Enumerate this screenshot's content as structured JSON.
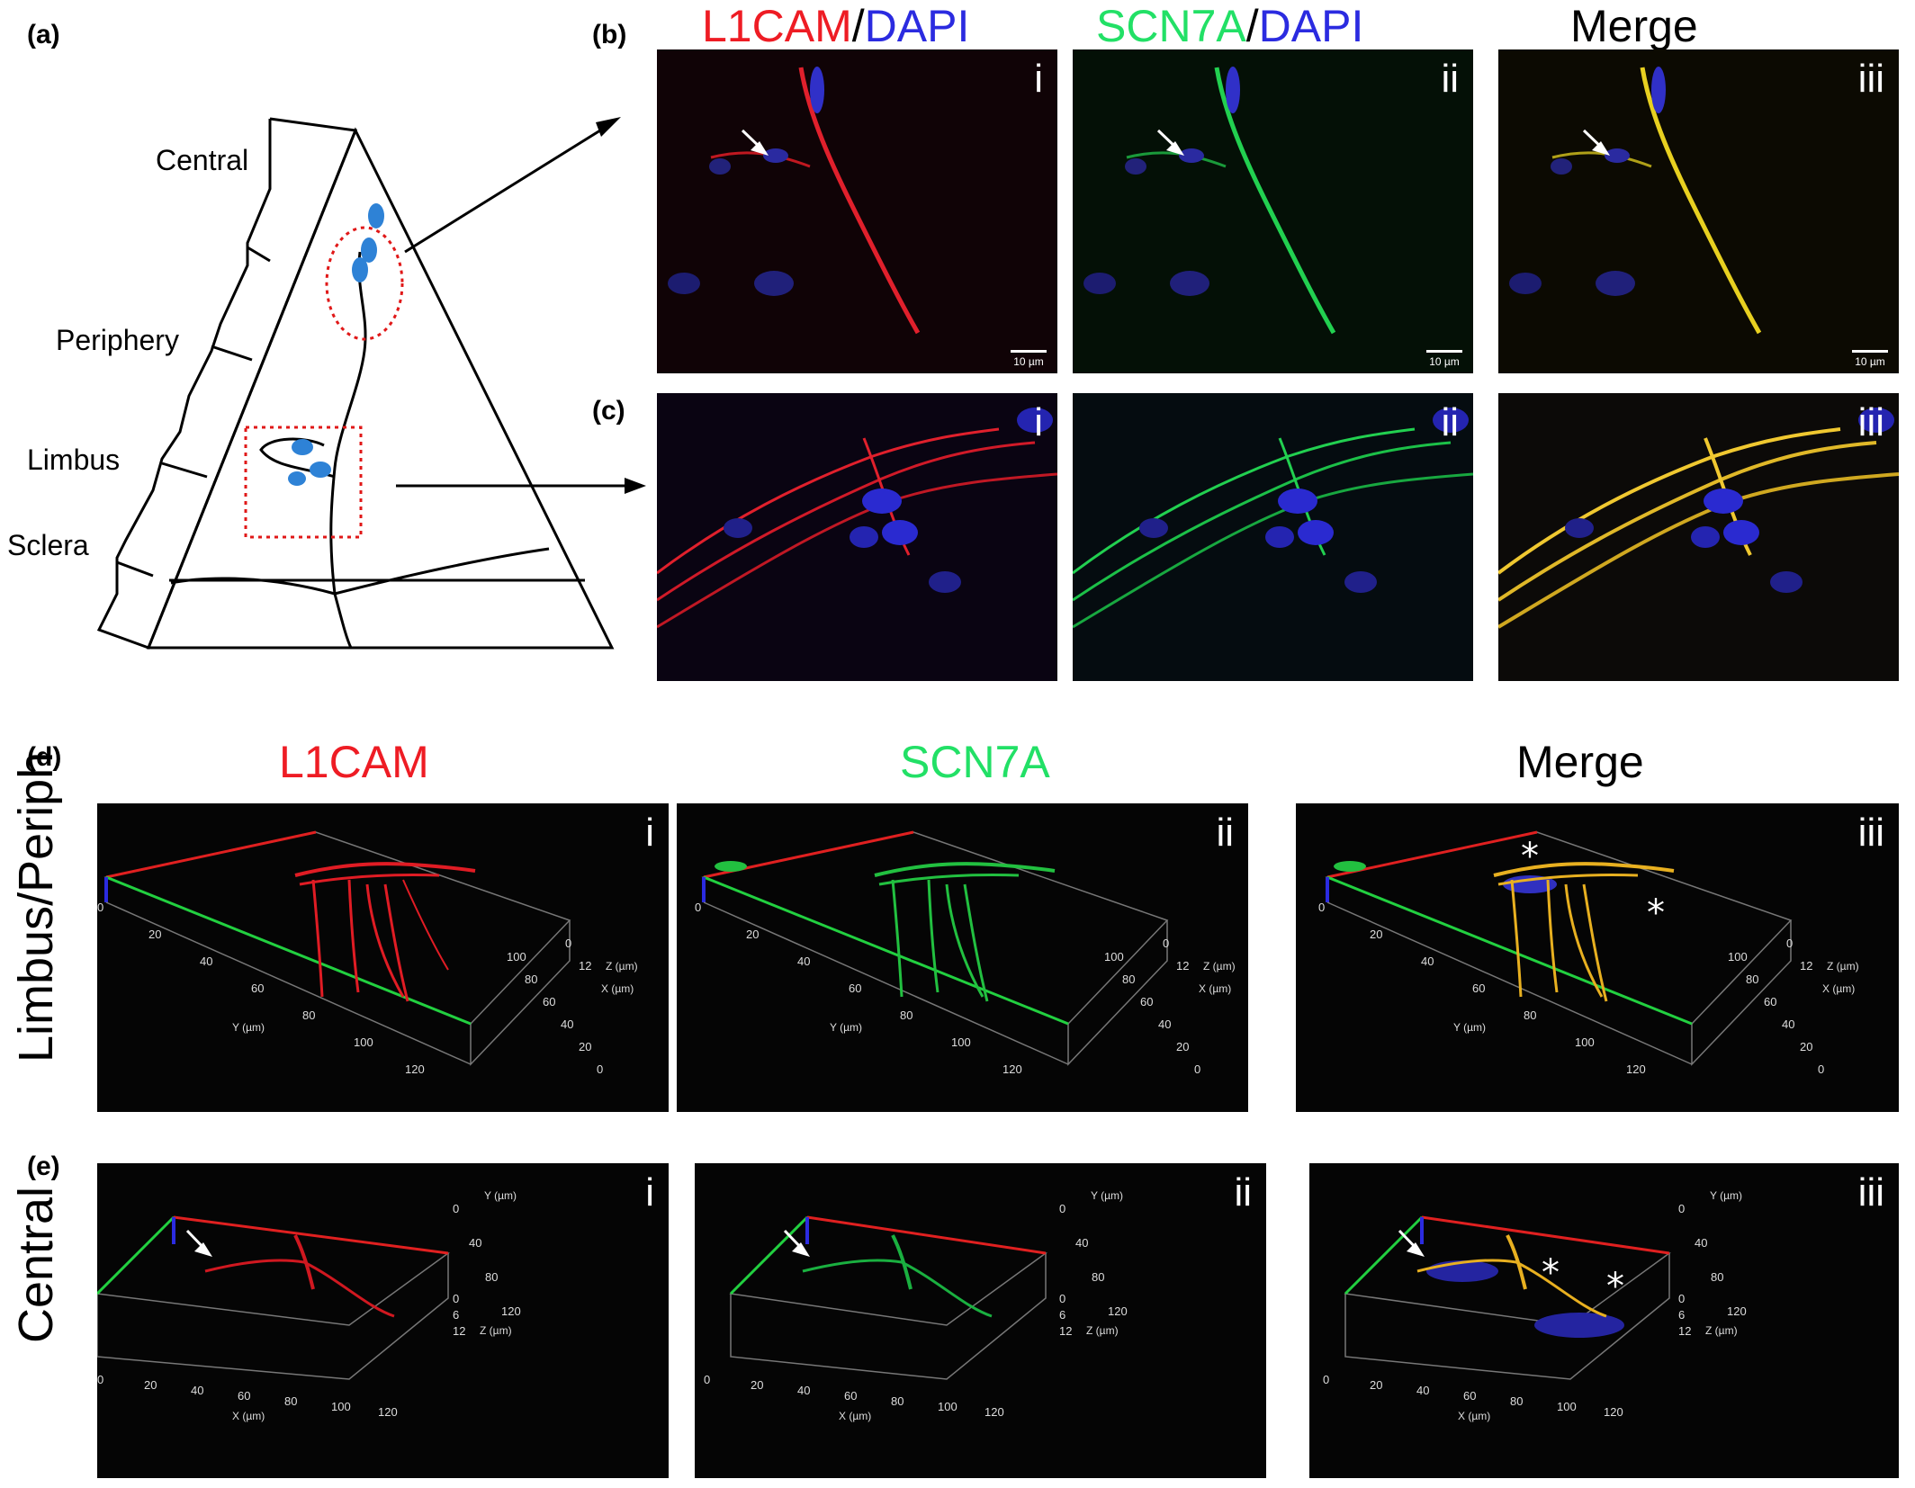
{
  "panel_labels": {
    "a": "(a)",
    "b": "(b)",
    "c": "(c)",
    "d": "(d)",
    "e": "(e)"
  },
  "diagram": {
    "regions": [
      "Central",
      "Periphery",
      "Limbus",
      "Sclera"
    ]
  },
  "top_titles": {
    "col1_a": "L1CAM",
    "col1_sep": "/",
    "col1_b": "DAPI",
    "col2_a": "SCN7A",
    "col2_sep": "/",
    "col2_b": "DAPI",
    "col3": "Merge"
  },
  "bottom_titles": {
    "col1": "L1CAM",
    "col2": "SCN7A",
    "col3": "Merge"
  },
  "row_labels": {
    "d": "Limbus/Periph",
    "e": "Central"
  },
  "numerals": [
    "i",
    "ii",
    "iii"
  ],
  "scale_bar": "10 µm",
  "axes_d": {
    "y_label": "Y (µm)",
    "x_label": "X (µm)",
    "z_label": "Z (µm)",
    "y_ticks": [
      "0",
      "20",
      "40",
      "60",
      "80",
      "100",
      "120"
    ],
    "x_ticks": [
      "0",
      "20",
      "40",
      "60",
      "80",
      "100"
    ],
    "z_ticks": [
      "0",
      "12"
    ]
  },
  "axes_e": {
    "x_label": "X (µm)",
    "y_label": "Y (µm)",
    "z_label": "Z (µm)",
    "x_ticks": [
      "0",
      "20",
      "40",
      "60",
      "80",
      "100",
      "120"
    ],
    "y_ticks": [
      "0",
      "40",
      "80",
      "120"
    ],
    "z_ticks": [
      "0",
      "6",
      "12"
    ]
  },
  "colors": {
    "red": "#ee1c24",
    "green": "#22e066",
    "blue": "#3a3adf",
    "merge": "#e8c020"
  }
}
